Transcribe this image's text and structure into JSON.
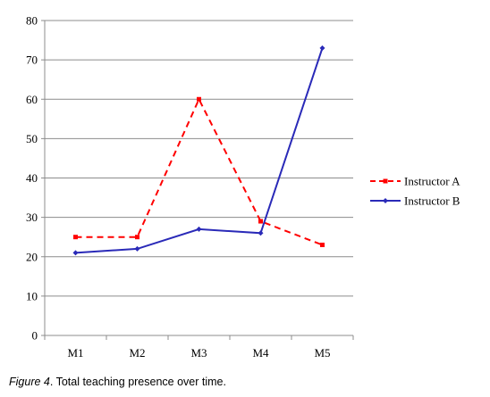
{
  "chart_data": {
    "type": "line",
    "categories": [
      "M1",
      "M2",
      "M3",
      "M4",
      "M5"
    ],
    "ylim": [
      0,
      80
    ],
    "yticks": [
      0,
      10,
      20,
      30,
      40,
      50,
      60,
      70,
      80
    ],
    "grid": true,
    "legend_position": "right",
    "series": [
      {
        "name": "Instructor A",
        "values": [
          25,
          25,
          60,
          29,
          23
        ],
        "color": "#ff0000",
        "line_style": "dashed",
        "marker": "square"
      },
      {
        "name": "Instructor B",
        "values": [
          21,
          22,
          27,
          26,
          73
        ],
        "color": "#2a2ab8",
        "line_style": "solid",
        "marker": "diamond"
      }
    ]
  },
  "caption": {
    "prefix": "Figure 4",
    "text": ". Total teaching presence over time."
  }
}
